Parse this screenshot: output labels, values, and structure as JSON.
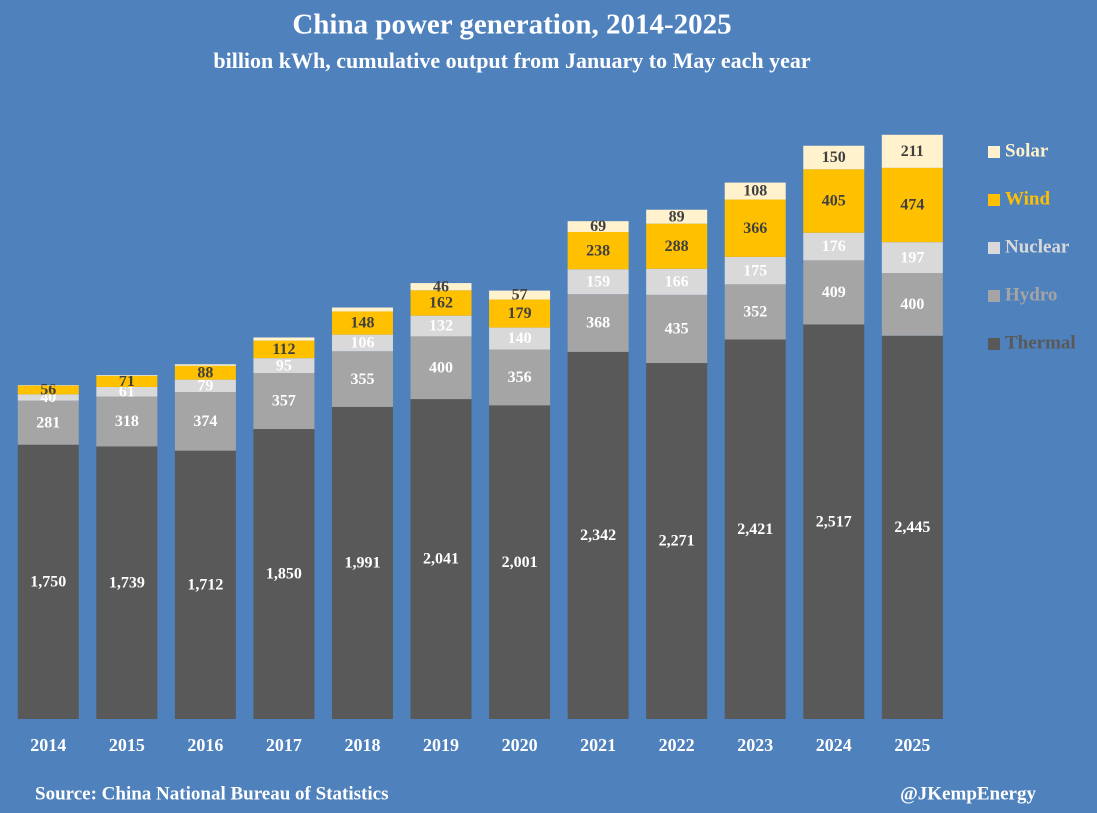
{
  "chart_data": {
    "type": "bar",
    "stacked": true,
    "title": "China power generation, 2014-2025",
    "subtitle": "billion kWh, cumulative output from January to May each year",
    "categories": [
      "2014",
      "2015",
      "2016",
      "2017",
      "2018",
      "2019",
      "2020",
      "2021",
      "2022",
      "2023",
      "2024",
      "2025"
    ],
    "series": [
      {
        "name": "Thermal",
        "color": "#595959",
        "label_color": "#ffffff",
        "values": [
          1750,
          1739,
          1712,
          1850,
          1991,
          2041,
          2001,
          2342,
          2271,
          2421,
          2517,
          2445
        ],
        "value_labels": [
          "1,750",
          "1,739",
          "1,712",
          "1,850",
          "1,991",
          "2,041",
          "2,001",
          "2,342",
          "2,271",
          "2,421",
          "2,517",
          "2,445"
        ]
      },
      {
        "name": "Hydro",
        "color": "#a5a5a5",
        "label_color": "#ffffff",
        "values": [
          281,
          318,
          374,
          357,
          355,
          400,
          356,
          368,
          435,
          352,
          409,
          400
        ]
      },
      {
        "name": "Nuclear",
        "color": "#d9d9d9",
        "label_color": "#ffffff",
        "values": [
          40,
          61,
          79,
          95,
          106,
          132,
          140,
          159,
          166,
          175,
          176,
          197
        ]
      },
      {
        "name": "Wind",
        "color": "#ffc000",
        "label_color": "#404040",
        "values": [
          56,
          71,
          88,
          112,
          148,
          162,
          179,
          238,
          288,
          366,
          405,
          474
        ]
      },
      {
        "name": "Solar",
        "color": "#fff2cc",
        "label_color": "#404040",
        "values": [
          3,
          5,
          10,
          20,
          25,
          46,
          57,
          69,
          89,
          108,
          150,
          211
        ]
      }
    ],
    "ylim": [
      0,
      4000
    ],
    "legend": "right",
    "source": "Source: China National Bureau of Statistics",
    "credit": "@JKempEnergy"
  }
}
